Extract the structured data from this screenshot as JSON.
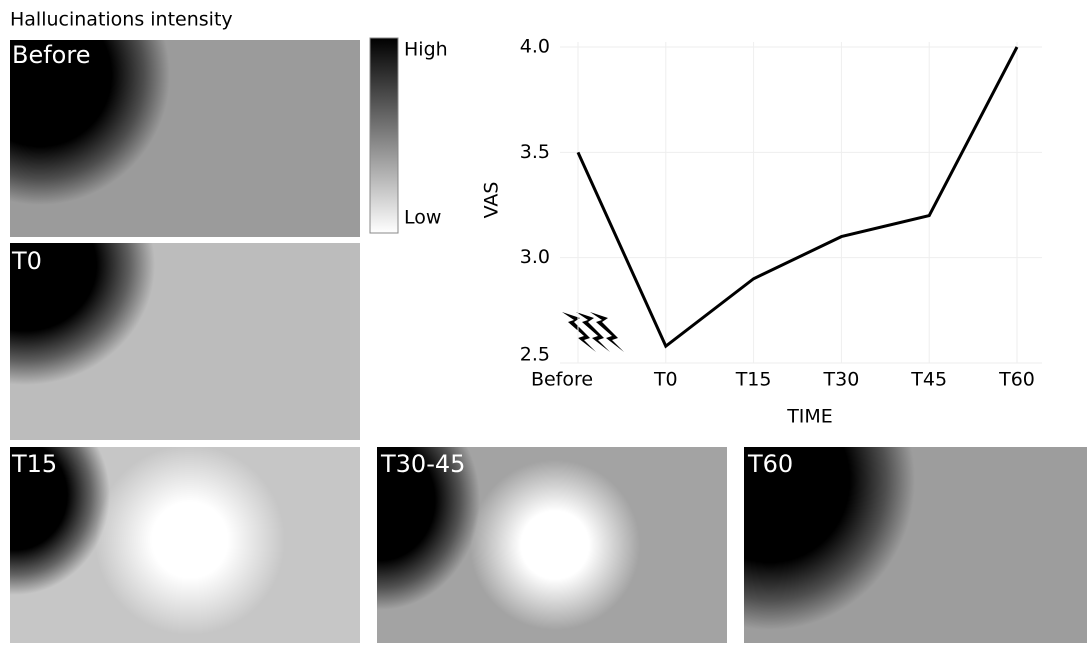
{
  "title": "Hallucinations intensity",
  "colorbar": {
    "high": "High",
    "low": "Low"
  },
  "panels": [
    "Before",
    "T0",
    "T15",
    "T30-45",
    "T60"
  ],
  "chart_data": {
    "type": "line",
    "categories": [
      "Before",
      "T0",
      "T15",
      "T30",
      "T45",
      "T60"
    ],
    "values": [
      3.5,
      2.58,
      2.9,
      3.1,
      3.2,
      4.0
    ],
    "color": "#000000",
    "ylim": [
      2.5,
      4.0
    ],
    "yticks": [
      2.5,
      {
        "value": 3.0,
        "label": "3.0"
      },
      3.5,
      {
        "value": 4.0,
        "label": "4.0"
      }
    ],
    "ylabel": "VAS",
    "xlabel": "TIME",
    "grid": true
  }
}
